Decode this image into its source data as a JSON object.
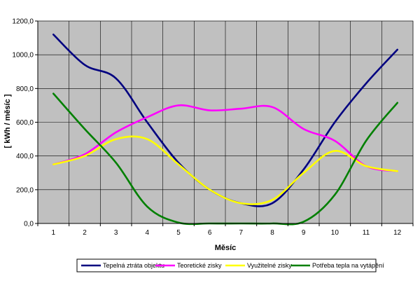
{
  "chart_data": {
    "type": "line",
    "title": "",
    "xlabel": "Měsíc",
    "ylabel": "[ kWh / měsíc ]",
    "x": [
      1,
      2,
      3,
      4,
      5,
      6,
      7,
      8,
      9,
      10,
      11,
      12
    ],
    "x_tick_labels": [
      "1",
      "2",
      "3",
      "4",
      "5",
      "6",
      "7",
      "8",
      "9",
      "10",
      "11",
      "12"
    ],
    "xlim": [
      0.5,
      12.5
    ],
    "ylim": [
      0,
      1200
    ],
    "y_ticks": [
      0,
      200,
      400,
      600,
      800,
      1000,
      1200
    ],
    "y_tick_labels": [
      "0,0",
      "200,0",
      "400,0",
      "600,0",
      "800,0",
      "1000,0",
      "1200,0"
    ],
    "grid": true,
    "plot_background": "#c0c0c0",
    "legend_position": "bottom",
    "series": [
      {
        "name": "Tepelná ztráta objektu",
        "color": "#000080",
        "values": [
          1120,
          940,
          860,
          600,
          360,
          200,
          120,
          120,
          320,
          600,
          830,
          1030
        ]
      },
      {
        "name": "Teoretické zisky",
        "color": "#ff00ff",
        "values": [
          350,
          410,
          540,
          630,
          700,
          670,
          680,
          690,
          560,
          490,
          340,
          310
        ]
      },
      {
        "name": "Využitelné zisky",
        "color": "#ffff00",
        "values": [
          350,
          400,
          500,
          500,
          350,
          200,
          120,
          140,
          300,
          430,
          340,
          310
        ]
      },
      {
        "name": "Potřeba tepla na vytápění",
        "color": "#008000",
        "values": [
          770,
          560,
          360,
          100,
          5,
          0,
          0,
          0,
          10,
          170,
          490,
          715
        ]
      }
    ]
  }
}
